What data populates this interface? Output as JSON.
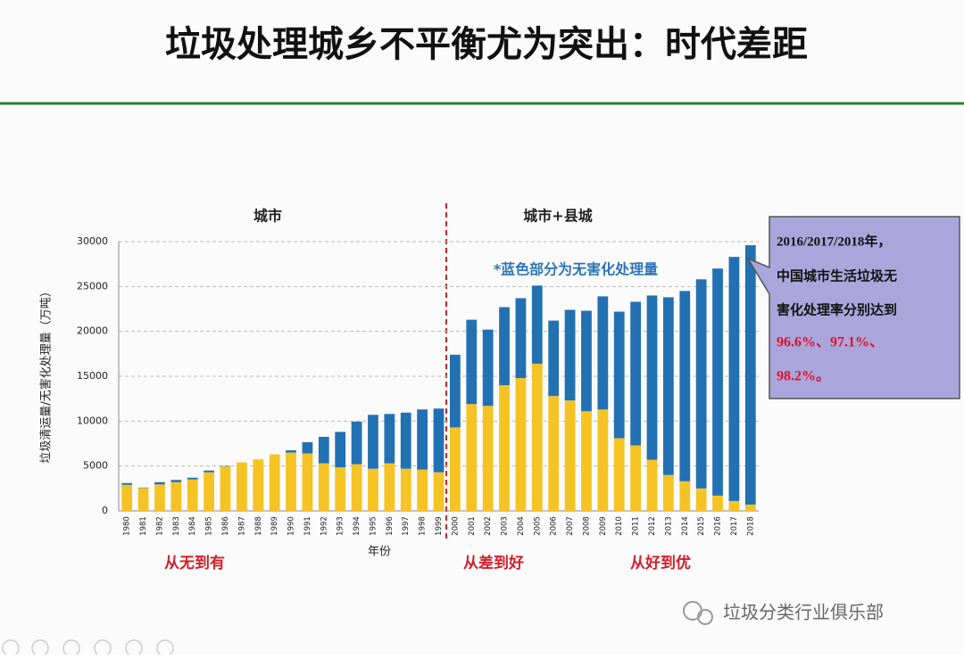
{
  "header": {
    "title": "垃圾处理城乡不平衡尤为突出：时代差距"
  },
  "chart_data": {
    "type": "bar",
    "stacked": true,
    "section_labels": [
      "城市",
      "城市+县城"
    ],
    "annotation": "*蓝色部分为无害化处理量",
    "x_label": "年份",
    "y_label": "垃圾清运量/无害化处理量（万吨）",
    "stage_labels": [
      "从无到有",
      "从差到好",
      "从好到优"
    ],
    "callout": [
      "2016/2017/2018年，",
      "中国城市生活垃圾无",
      "害化处理率分别达到",
      "96.6%、97.1%、",
      "98.2%。"
    ],
    "categories": [
      "1980",
      "1981",
      "1982",
      "1983",
      "1984",
      "1985",
      "1986",
      "1987",
      "1988",
      "1989",
      "1990",
      "1991",
      "1992",
      "1993",
      "1994",
      "1995",
      "1996",
      "1997",
      "1998",
      "1999",
      "2000",
      "2001",
      "2002",
      "2003",
      "2004",
      "2005",
      "2006",
      "2007",
      "2008",
      "2009",
      "2010",
      "2011",
      "2012",
      "2013",
      "2014",
      "2015",
      "2016",
      "2017",
      "2018"
    ],
    "series": [
      {
        "color": "#f6c324",
        "values": [
          2900,
          2550,
          2950,
          3200,
          3500,
          4300,
          4950,
          5400,
          5750,
          6300,
          6500,
          6400,
          5300,
          4850,
          5200,
          4700,
          5300,
          4700,
          4600,
          4300,
          9300,
          11900,
          11700,
          14000,
          14800,
          16400,
          12800,
          12300,
          11100,
          11300,
          8100,
          7300,
          5700,
          4000,
          3300,
          2500,
          1700,
          1100,
          700
        ]
      },
      {
        "color": "#2271b3",
        "values": [
          200,
          50,
          250,
          250,
          200,
          200,
          50,
          0,
          0,
          0,
          250,
          1250,
          2950,
          3950,
          4750,
          6000,
          5500,
          6250,
          6700,
          7100,
          8100,
          9400,
          8500,
          8700,
          8900,
          8700,
          8400,
          10100,
          11200,
          12600,
          14100,
          16000,
          18300,
          19800,
          21200,
          23300,
          25300,
          27200,
          28900
        ]
      }
    ],
    "ylim": [
      0,
      30000
    ],
    "yticks": [
      0,
      5000,
      10000,
      15000,
      20000,
      25000,
      30000
    ],
    "grid": true
  },
  "watermark": "垃圾分类行业俱乐部"
}
